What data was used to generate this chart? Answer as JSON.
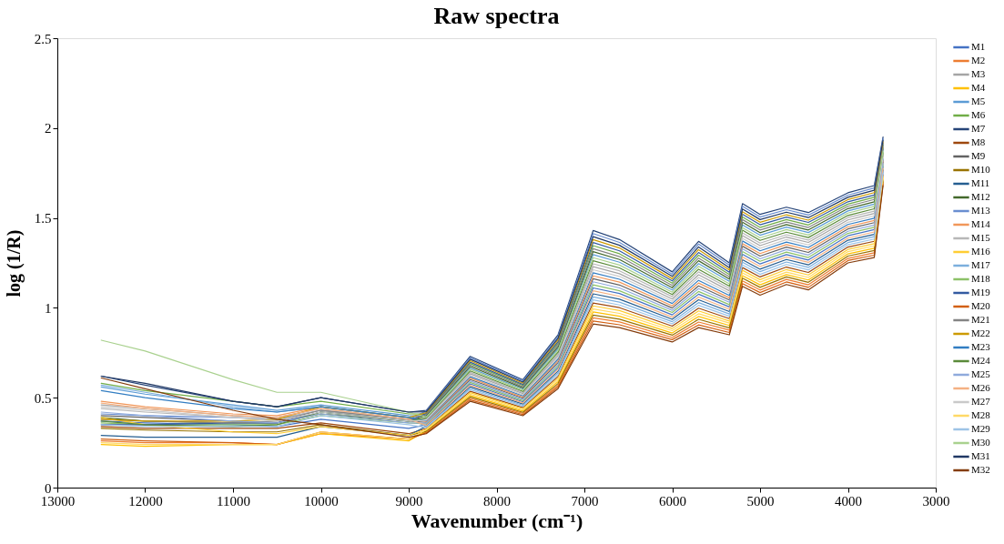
{
  "chart_data": {
    "type": "line",
    "title": "Raw spectra",
    "xlabel": "Wavenumber (cm⁻¹)",
    "ylabel": "log (1/R)",
    "xlim": [
      13000,
      3000
    ],
    "xticks": [
      13000,
      12000,
      11000,
      10000,
      9000,
      8000,
      7000,
      6000,
      5000,
      4000,
      3000
    ],
    "ylim": [
      0,
      2.5
    ],
    "yticks": [
      0,
      0.5,
      1,
      1.5,
      2,
      2.5
    ],
    "grid": false,
    "legend": "right",
    "x": [
      12500,
      12000,
      11000,
      10500,
      10000,
      9000,
      8800,
      8300,
      7700,
      7300,
      6900,
      6600,
      6000,
      5700,
      5350,
      5200,
      5000,
      4700,
      4450,
      4000,
      3700,
      3600
    ],
    "series": [
      {
        "name": "M1",
        "color": "#4472c4",
        "values": [
          0.37,
          0.36,
          0.35,
          0.34,
          0.38,
          0.33,
          0.35,
          0.577,
          0.477,
          0.666,
          1.111,
          1.08,
          0.961,
          1.076,
          1.005,
          1.298,
          1.244,
          1.296,
          1.266,
          1.401,
          1.435,
          1.785
        ]
      },
      {
        "name": "M2",
        "color": "#ed7d31",
        "values": [
          0.26,
          0.25,
          0.25,
          0.24,
          0.3,
          0.27,
          0.308,
          0.496,
          0.413,
          0.569,
          0.944,
          0.922,
          0.835,
          0.921,
          0.876,
          1.15,
          1.099,
          1.158,
          1.128,
          1.275,
          1.306,
          1.697
        ]
      },
      {
        "name": "M3",
        "color": "#a5a5a5",
        "values": [
          0.46,
          0.44,
          0.4,
          0.39,
          0.44,
          0.38,
          0.38,
          0.633,
          0.523,
          0.734,
          1.229,
          1.19,
          1.049,
          1.184,
          1.095,
          1.402,
          1.346,
          1.394,
          1.364,
          1.489,
          1.525,
          1.845
        ]
      },
      {
        "name": "M4",
        "color": "#ffc000",
        "values": [
          0.24,
          0.23,
          0.24,
          0.24,
          0.3,
          0.26,
          0.317,
          0.512,
          0.426,
          0.589,
          0.977,
          0.953,
          0.86,
          0.952,
          0.902,
          1.179,
          1.128,
          1.185,
          1.155,
          1.3,
          1.332,
          1.715
        ]
      },
      {
        "name": "M5",
        "color": "#5b9bd5",
        "values": [
          0.56,
          0.52,
          0.46,
          0.43,
          0.46,
          0.4,
          0.396,
          0.665,
          0.548,
          0.773,
          1.296,
          1.254,
          1.099,
          1.246,
          1.147,
          1.461,
          1.404,
          1.449,
          1.419,
          1.539,
          1.577,
          1.88
        ]
      },
      {
        "name": "M6",
        "color": "#70ad47",
        "values": [
          0.58,
          0.54,
          0.48,
          0.45,
          0.48,
          0.41,
          0.409,
          0.69,
          0.568,
          0.802,
          1.346,
          1.301,
          1.137,
          1.293,
          1.185,
          1.506,
          1.447,
          1.491,
          1.461,
          1.577,
          1.615,
          1.906
        ]
      },
      {
        "name": "M7",
        "color": "#264478",
        "values": [
          0.62,
          0.57,
          0.48,
          0.45,
          0.5,
          0.42,
          0.43,
          0.73,
          0.6,
          0.85,
          1.43,
          1.38,
          1.2,
          1.37,
          1.25,
          1.58,
          1.52,
          1.56,
          1.53,
          1.64,
          1.68,
          1.95
        ]
      },
      {
        "name": "M8",
        "color": "#9e480e",
        "values": [
          0.34,
          0.33,
          0.33,
          0.33,
          0.36,
          0.3,
          0.329,
          0.536,
          0.445,
          0.618,
          1.027,
          1.001,
          0.898,
          0.998,
          0.94,
          1.224,
          1.172,
          1.227,
          1.197,
          1.338,
          1.37,
          1.741
        ]
      },
      {
        "name": "M9",
        "color": "#636363",
        "values": [
          0.4,
          0.39,
          0.37,
          0.36,
          0.42,
          0.37,
          0.363,
          0.601,
          0.497,
          0.695,
          1.162,
          1.127,
          0.999,
          1.122,
          1.044,
          1.343,
          1.288,
          1.338,
          1.308,
          1.439,
          1.474,
          1.811
        ]
      },
      {
        "name": "M10",
        "color": "#997300",
        "values": [
          0.33,
          0.32,
          0.31,
          0.31,
          0.35,
          0.29,
          0.313,
          0.504,
          0.419,
          0.579,
          0.96,
          0.937,
          0.848,
          0.936,
          0.889,
          1.165,
          1.114,
          1.172,
          1.142,
          1.288,
          1.319,
          1.706
        ]
      },
      {
        "name": "M11",
        "color": "#255e91",
        "values": [
          0.29,
          0.28,
          0.28,
          0.28,
          0.34,
          0.29,
          0.342,
          0.561,
          0.465,
          0.647,
          1.078,
          1.048,
          0.936,
          1.045,
          0.979,
          1.268,
          1.215,
          1.269,
          1.239,
          1.376,
          1.409,
          1.767
        ]
      },
      {
        "name": "M12",
        "color": "#43682b",
        "values": [
          0.39,
          0.37,
          0.36,
          0.36,
          0.41,
          0.37,
          0.401,
          0.674,
          0.555,
          0.782,
          1.313,
          1.269,
          1.112,
          1.262,
          1.16,
          1.476,
          1.418,
          1.463,
          1.433,
          1.552,
          1.59,
          1.889
        ]
      },
      {
        "name": "M13",
        "color": "#698ed0",
        "values": [
          0.41,
          0.4,
          0.39,
          0.38,
          0.43,
          0.38,
          0.426,
          0.722,
          0.594,
          0.84,
          1.413,
          1.364,
          1.187,
          1.355,
          1.237,
          1.565,
          1.505,
          1.546,
          1.516,
          1.627,
          1.667,
          1.941
        ]
      },
      {
        "name": "M14",
        "color": "#f1975a",
        "values": [
          0.48,
          0.45,
          0.41,
          0.4,
          0.45,
          0.39,
          0.367,
          0.609,
          0.503,
          0.705,
          1.178,
          1.143,
          1.011,
          1.138,
          1.056,
          1.357,
          1.302,
          1.352,
          1.322,
          1.451,
          1.486,
          1.819
        ]
      },
      {
        "name": "M15",
        "color": "#b7b7b7",
        "values": [
          0.44,
          0.42,
          0.39,
          0.38,
          0.43,
          0.37,
          0.384,
          0.641,
          0.529,
          0.744,
          1.245,
          1.206,
          1.062,
          1.2,
          1.108,
          1.417,
          1.36,
          1.407,
          1.377,
          1.502,
          1.538,
          1.854
        ]
      },
      {
        "name": "M16",
        "color": "#ffcd33",
        "values": [
          0.39,
          0.35,
          0.31,
          0.3,
          0.34,
          0.29,
          0.325,
          0.528,
          0.439,
          0.608,
          1.011,
          0.985,
          0.885,
          0.983,
          0.927,
          1.209,
          1.157,
          1.213,
          1.183,
          1.325,
          1.357,
          1.732
        ]
      },
      {
        "name": "M17",
        "color": "#7cafdd",
        "values": [
          0.57,
          0.53,
          0.45,
          0.42,
          0.45,
          0.39,
          0.338,
          0.553,
          0.458,
          0.637,
          1.061,
          1.032,
          0.923,
          1.029,
          0.966,
          1.254,
          1.201,
          1.255,
          1.225,
          1.363,
          1.396,
          1.758
        ]
      },
      {
        "name": "M18",
        "color": "#8cc168",
        "values": [
          0.36,
          0.35,
          0.35,
          0.35,
          0.4,
          0.36,
          0.355,
          0.585,
          0.484,
          0.676,
          1.128,
          1.095,
          0.974,
          1.091,
          1.018,
          1.313,
          1.259,
          1.31,
          1.28,
          1.414,
          1.448,
          1.793
        ]
      },
      {
        "name": "M19",
        "color": "#335aa1",
        "values": [
          0.35,
          0.35,
          0.36,
          0.36,
          0.42,
          0.37,
          0.413,
          0.698,
          0.574,
          0.811,
          1.363,
          1.317,
          1.15,
          1.308,
          1.198,
          1.521,
          1.462,
          1.505,
          1.475,
          1.59,
          1.628,
          1.915
        ]
      },
      {
        "name": "M20",
        "color": "#d26012",
        "values": [
          0.27,
          0.26,
          0.25,
          0.24,
          0.31,
          0.27,
          0.304,
          0.488,
          0.406,
          0.56,
          0.927,
          0.906,
          0.823,
          0.905,
          0.863,
          1.135,
          1.085,
          1.144,
          1.114,
          1.263,
          1.293,
          1.689
        ]
      },
      {
        "name": "M21",
        "color": "#848484",
        "values": [
          0.38,
          0.37,
          0.36,
          0.37,
          0.43,
          0.38,
          0.405,
          0.682,
          0.561,
          0.792,
          1.329,
          1.285,
          1.125,
          1.277,
          1.173,
          1.491,
          1.433,
          1.477,
          1.447,
          1.565,
          1.603,
          1.898
        ]
      },
      {
        "name": "M22",
        "color": "#cc9a00",
        "values": [
          0.38,
          0.37,
          0.37,
          0.38,
          0.45,
          0.39,
          0.417,
          0.706,
          0.581,
          0.821,
          1.38,
          1.333,
          1.162,
          1.324,
          1.211,
          1.535,
          1.476,
          1.518,
          1.488,
          1.602,
          1.641,
          1.924
        ]
      },
      {
        "name": "M23",
        "color": "#327dc2",
        "values": [
          0.54,
          0.5,
          0.44,
          0.42,
          0.45,
          0.39,
          0.371,
          0.617,
          0.51,
          0.715,
          1.195,
          1.159,
          1.024,
          1.153,
          1.069,
          1.372,
          1.317,
          1.366,
          1.336,
          1.464,
          1.499,
          1.828
        ]
      },
      {
        "name": "M24",
        "color": "#5a8a39",
        "values": [
          0.37,
          0.35,
          0.34,
          0.35,
          0.42,
          0.37,
          0.388,
          0.649,
          0.535,
          0.753,
          1.262,
          1.222,
          1.074,
          1.215,
          1.121,
          1.432,
          1.375,
          1.421,
          1.391,
          1.514,
          1.551,
          1.863
        ]
      },
      {
        "name": "M25",
        "color": "#8faadc",
        "values": [
          0.42,
          0.4,
          0.37,
          0.36,
          0.41,
          0.36,
          0.359,
          0.593,
          0.49,
          0.685,
          1.145,
          1.111,
          0.986,
          1.107,
          1.031,
          1.328,
          1.273,
          1.324,
          1.294,
          1.426,
          1.461,
          1.802
        ]
      },
      {
        "name": "M26",
        "color": "#f4b183",
        "values": [
          0.47,
          0.44,
          0.4,
          0.39,
          0.44,
          0.38,
          0.346,
          0.569,
          0.471,
          0.656,
          1.095,
          1.064,
          0.948,
          1.06,
          0.992,
          1.283,
          1.23,
          1.283,
          1.253,
          1.388,
          1.422,
          1.776
        ]
      },
      {
        "name": "M27",
        "color": "#c9c9c9",
        "values": [
          0.45,
          0.43,
          0.39,
          0.37,
          0.42,
          0.37,
          0.375,
          0.625,
          0.516,
          0.724,
          1.212,
          1.175,
          1.036,
          1.169,
          1.082,
          1.387,
          1.331,
          1.38,
          1.35,
          1.476,
          1.512,
          1.837
        ]
      },
      {
        "name": "M28",
        "color": "#ffd966",
        "values": [
          0.25,
          0.24,
          0.24,
          0.24,
          0.31,
          0.27,
          0.321,
          0.52,
          0.432,
          0.598,
          0.994,
          0.969,
          0.873,
          0.967,
          0.915,
          1.194,
          1.143,
          1.199,
          1.169,
          1.313,
          1.345,
          1.724
        ]
      },
      {
        "name": "M29",
        "color": "#9dc3e6",
        "values": [
          0.35,
          0.34,
          0.34,
          0.34,
          0.4,
          0.35,
          0.334,
          0.545,
          0.452,
          0.627,
          1.044,
          1.016,
          0.911,
          1.014,
          0.953,
          1.239,
          1.186,
          1.241,
          1.211,
          1.351,
          1.383,
          1.75
        ]
      },
      {
        "name": "M30",
        "color": "#a9d18e",
        "values": [
          0.82,
          0.76,
          0.6,
          0.53,
          0.53,
          0.42,
          0.392,
          0.657,
          0.542,
          0.763,
          1.279,
          1.238,
          1.087,
          1.231,
          1.134,
          1.446,
          1.389,
          1.435,
          1.405,
          1.527,
          1.564,
          1.872
        ]
      },
      {
        "name": "M31",
        "color": "#203864",
        "values": [
          0.62,
          0.58,
          0.48,
          0.45,
          0.5,
          0.42,
          0.422,
          0.714,
          0.587,
          0.831,
          1.396,
          1.348,
          1.175,
          1.339,
          1.224,
          1.55,
          1.491,
          1.532,
          1.502,
          1.615,
          1.654,
          1.933
        ]
      },
      {
        "name": "M32",
        "color": "#843c0c",
        "values": [
          0.61,
          0.55,
          0.43,
          0.38,
          0.35,
          0.28,
          0.3,
          0.48,
          0.4,
          0.55,
          0.91,
          0.89,
          0.81,
          0.89,
          0.85,
          1.12,
          1.07,
          1.13,
          1.1,
          1.25,
          1.28,
          1.68
        ]
      }
    ]
  }
}
